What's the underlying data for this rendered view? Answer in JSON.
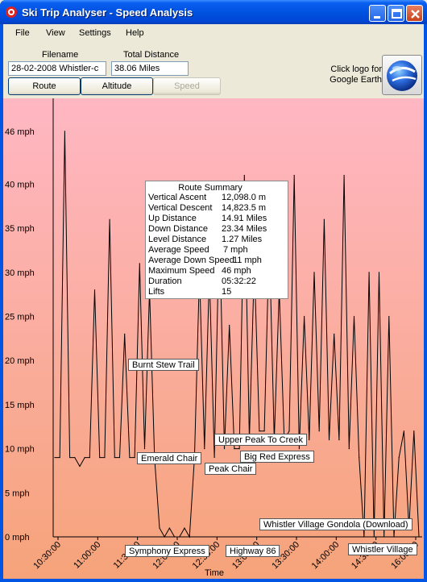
{
  "window": {
    "title": "Ski Trip Analyser - Speed Analysis"
  },
  "menu": [
    "File",
    "View",
    "Settings",
    "Help"
  ],
  "fields": {
    "filename_label": "Filename",
    "filename_value": "28-02-2008  Whistler-c",
    "distance_label": "Total Distance",
    "distance_value": "38.06 Miles"
  },
  "buttons": {
    "route": "Route",
    "altitude": "Altitude",
    "speed": "Speed"
  },
  "google_earth": {
    "line1": "Click logo for",
    "line2": "Google Earth",
    "icon": "google-earth-globe"
  },
  "summary": {
    "title": "Route Summary",
    "rows": [
      {
        "label": "Vertical Ascent",
        "value": "12,098.0 m"
      },
      {
        "label": "Vertical Descent",
        "value": "14,823.5 m"
      },
      {
        "label": "Up Distance",
        "value": "14.91 Miles"
      },
      {
        "label": "Down Distance",
        "value": "23.34 Miles"
      },
      {
        "label": "Level Distance",
        "value": "1.27 Miles"
      },
      {
        "label": "Average Speed",
        "value": "7 mph"
      },
      {
        "label": "Average Down Speed",
        "value": "11 mph"
      },
      {
        "label": "Maximum Speed",
        "value": "46 mph"
      },
      {
        "label": "Duration",
        "value": "05:32:22"
      },
      {
        "label": "Lifts",
        "value": "15"
      }
    ]
  },
  "annotations": [
    "Burnt Stew Trail",
    "Emerald Chair",
    "Upper Peak To Creek",
    "Big Red Express",
    "Peak Chair",
    "Whistler Village Gondola (Download)",
    "Symphony Express",
    "Highway 86",
    "Whistler Village"
  ],
  "chart_data": {
    "type": "line",
    "xlabel": "Time",
    "ylabel": "",
    "x_ticks": [
      "10:30:00",
      "11:00:00",
      "11:30:00",
      "12:00:00",
      "12:30:00",
      "13:00:00",
      "13:30:00",
      "14:00:00",
      "14:30:00",
      "16:00:00"
    ],
    "y_ticks": [
      "0 mph",
      "5 mph",
      "10 mph",
      "15 mph",
      "20 mph",
      "25 mph",
      "30 mph",
      "35 mph",
      "40 mph",
      "46 mph"
    ],
    "ylim": [
      0,
      49
    ],
    "series": [
      {
        "values_mph": [
          9,
          9,
          46,
          9,
          9,
          8,
          9,
          9,
          28,
          9,
          9,
          36,
          9,
          9,
          23,
          9,
          9,
          31,
          10,
          28,
          9,
          1,
          0,
          1,
          0,
          0,
          1,
          0,
          9,
          30,
          10,
          30,
          9,
          36,
          10,
          24,
          10,
          10,
          41,
          11,
          31,
          12,
          12,
          34,
          11,
          28,
          11,
          12,
          41,
          10,
          25,
          11,
          30,
          12,
          36,
          11,
          23,
          11,
          41,
          10,
          25,
          9,
          0,
          30,
          0,
          30,
          0,
          25,
          0,
          9,
          12,
          1,
          12,
          0
        ]
      }
    ],
    "grid": false,
    "background": "gradient pink to orange"
  },
  "colors": {
    "title_bar": "#0054e3",
    "plot_top": "#ffb6c1",
    "plot_bottom": "#f5a47c",
    "line": "#000000"
  }
}
